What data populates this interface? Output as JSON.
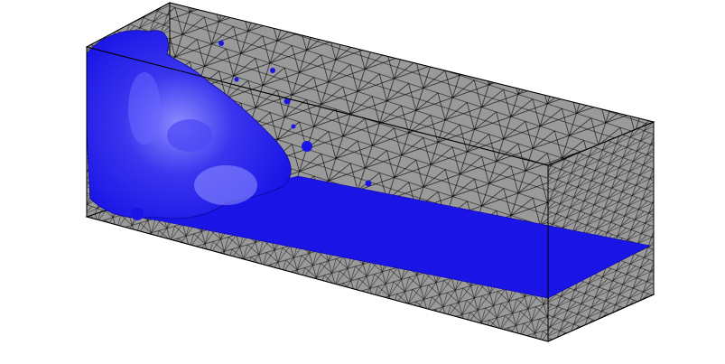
{
  "scene": {
    "background": "#ffffff",
    "mesh_face_color": "#9a9a9a",
    "mesh_line_color": "#000000",
    "fluid_color": "#1a14e6",
    "fluid_highlight_color": "#8c8cff",
    "fluid_dark_color": "#0a0a9c"
  }
}
